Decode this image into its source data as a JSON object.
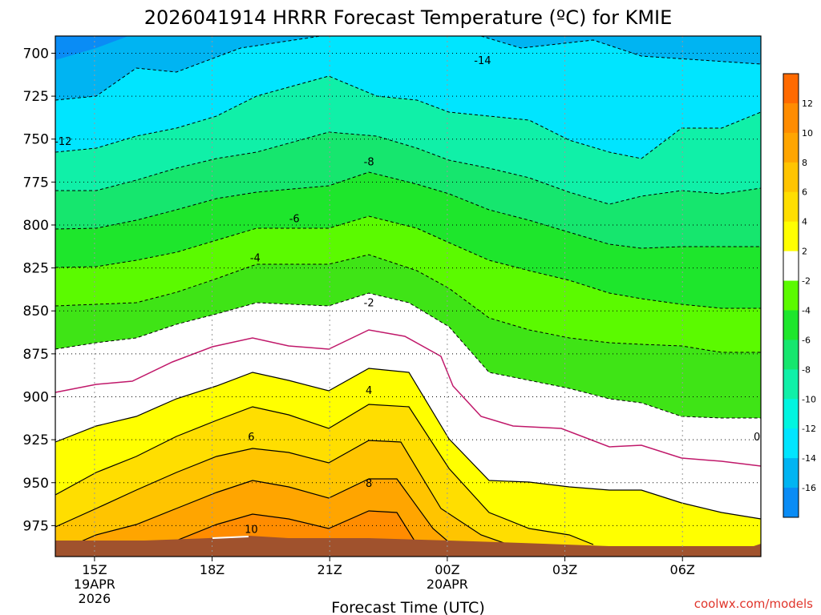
{
  "chart_data": {
    "type": "heatmap",
    "title": "2026041914 HRRR Forecast Temperature (ºC) for KMIE",
    "xlabel": "Forecast Time (UTC)",
    "ylabel": "",
    "credit": "coolwx.com/models",
    "x_range_hours_utc_from_19APR_00Z": [
      14,
      32
    ],
    "y_range_mb": [
      690,
      993
    ],
    "y_ticks": [
      "700",
      "725",
      "750",
      "775",
      "800",
      "825",
      "850",
      "875",
      "900",
      "925",
      "950",
      "975"
    ],
    "x_ticks": [
      {
        "hour": 15,
        "label": "15Z",
        "date": "19APR",
        "year": "2026"
      },
      {
        "hour": 18,
        "label": "18Z",
        "date": "",
        "year": ""
      },
      {
        "hour": 21,
        "label": "21Z",
        "date": "",
        "year": ""
      },
      {
        "hour": 24,
        "label": "00Z",
        "date": "20APR",
        "year": ""
      },
      {
        "hour": 27,
        "label": "03Z",
        "date": "",
        "year": ""
      },
      {
        "hour": 30,
        "label": "06Z",
        "date": "",
        "year": ""
      }
    ],
    "colorbar": {
      "levels": [
        "12",
        "10",
        "8",
        "6",
        "4",
        "2",
        "-2",
        "-4",
        "-6",
        "-8",
        "-10",
        "-12",
        "-14",
        "-16"
      ],
      "colors": [
        "#ff6a00",
        "#ff8c00",
        "#ffa500",
        "#ffc400",
        "#ffde00",
        "#ffff00",
        "#ffffff",
        "#5bfa00",
        "#1ee62c",
        "#16e66e",
        "#10f0a8",
        "#00f5e0",
        "#00e5ff",
        "#00b4f2",
        "#0a8cf5"
      ]
    },
    "contour_labels": [
      {
        "value": "-14",
        "hour": 24.9,
        "mb": 704
      },
      {
        "value": "-12",
        "hour": 14.2,
        "mb": 751
      },
      {
        "value": "-8",
        "hour": 22.0,
        "mb": 763
      },
      {
        "value": "-6",
        "hour": 20.1,
        "mb": 796
      },
      {
        "value": "-4",
        "hour": 19.1,
        "mb": 819
      },
      {
        "value": "-2",
        "hour": 22.0,
        "mb": 845
      },
      {
        "value": "0",
        "hour": 31.9,
        "mb": 923
      },
      {
        "value": "4",
        "hour": 22.0,
        "mb": 896
      },
      {
        "value": "6",
        "hour": 19.0,
        "mb": 923
      },
      {
        "value": "8",
        "hour": 22.0,
        "mb": 950
      },
      {
        "value": "10",
        "hour": 19.0,
        "mb": 977
      }
    ]
  }
}
